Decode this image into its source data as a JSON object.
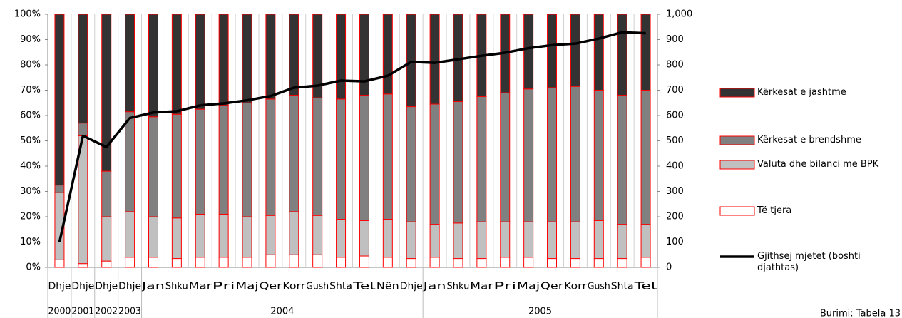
{
  "chart_data": {
    "type": "stacked_bar_line",
    "categories": [
      "Dhje",
      "Dhje",
      "Dhje",
      "Dhje",
      "Jan",
      "Shku",
      "Mar",
      "Pri",
      "Maj",
      "Qer",
      "Korr",
      "Gush",
      "Shta",
      "Tet",
      "Nën",
      "Dhje",
      "Jan",
      "Shku",
      "Mar",
      "Pri",
      "Maj",
      "Qer",
      "Korr",
      "Gush",
      "Shta",
      "Tet"
    ],
    "category_groups": [
      "2000",
      "2001",
      "2002",
      "2003",
      "2004",
      "2004",
      "2004",
      "2004",
      "2004",
      "2004",
      "2004",
      "2004",
      "2004",
      "2004",
      "2004",
      "2004",
      "2005",
      "2005",
      "2005",
      "2005",
      "2005",
      "2005",
      "2005",
      "2005",
      "2005",
      "2005"
    ],
    "series": [
      {
        "name": "Të tjera",
        "color": "#ffffff",
        "values": [
          3,
          1.5,
          2.5,
          4,
          4,
          3.5,
          4,
          4,
          4,
          5,
          5,
          5,
          4,
          4.5,
          4,
          3.5,
          4,
          3.5,
          3.5,
          4,
          4,
          3.5,
          3.5,
          3.5,
          3.5,
          4
        ]
      },
      {
        "name": "Valuta dhe bilanci me BPK",
        "color": "#c0c0c0",
        "values": [
          26.5,
          50.5,
          17.5,
          18,
          16,
          16,
          17,
          17,
          16,
          15.5,
          17,
          15.5,
          15,
          14,
          15,
          14.5,
          13,
          14,
          14.5,
          14,
          14,
          14.5,
          14.5,
          15,
          13.5,
          13
        ]
      },
      {
        "name": "Kërkesat e brendshme",
        "color": "#808080",
        "values": [
          3,
          5,
          18,
          39.5,
          39.5,
          41,
          41.5,
          43,
          45,
          46,
          46,
          46.5,
          47.5,
          49.5,
          49.5,
          45.5,
          47.5,
          48,
          49.5,
          51,
          52.5,
          53,
          53.5,
          51.5,
          51,
          53
        ]
      },
      {
        "name": "Kërkesat e jashtme",
        "color": "#333333",
        "values": [
          67.5,
          43,
          62,
          38.5,
          40.5,
          39.5,
          37.5,
          36,
          35,
          33.5,
          32,
          33,
          33.5,
          32,
          31.5,
          36.5,
          35.5,
          34.5,
          32.5,
          31,
          29.5,
          29,
          28.5,
          30,
          32,
          30
        ]
      },
      {
        "name": "Gjithsej mjetet (boshti djathtas)",
        "color": "#000000",
        "axis": "y2",
        "values": [
          100,
          520,
          475,
          590,
          612,
          617,
          640,
          648,
          660,
          677,
          710,
          718,
          738,
          735,
          757,
          812,
          808,
          822,
          836,
          848,
          866,
          878,
          884,
          904,
          929,
          925
        ]
      }
    ],
    "bar_edge_color": "#ff0000",
    "ylim": [
      0,
      100
    ],
    "yticks": [
      {
        "value": 0,
        "label": "0%"
      },
      {
        "value": 10,
        "label": "10%"
      },
      {
        "value": 20,
        "label": "20%"
      },
      {
        "value": 30,
        "label": "30%"
      },
      {
        "value": 40,
        "label": "40%"
      },
      {
        "value": 50,
        "label": "50%"
      },
      {
        "value": 60,
        "label": "60%"
      },
      {
        "value": 70,
        "label": "70%"
      },
      {
        "value": 80,
        "label": "80%"
      },
      {
        "value": 90,
        "label": "90%"
      },
      {
        "value": 100,
        "label": "100%"
      }
    ],
    "y2lim": [
      0,
      1000
    ],
    "y2ticks": [
      0,
      100,
      200,
      300,
      400,
      500,
      600,
      700,
      800,
      900,
      {
        "value": 1000,
        "label": "1,000"
      }
    ],
    "grid": "x",
    "legend": "right",
    "annotation": "Burimi: Tabela 13"
  }
}
